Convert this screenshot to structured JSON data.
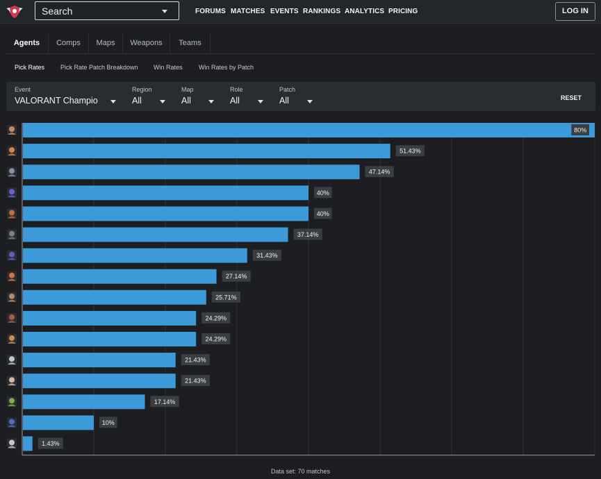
{
  "header": {
    "search_placeholder": "Search",
    "nav": [
      "FORUMS",
      "MATCHES",
      "EVENTS",
      "RANKINGS",
      "ANALYTICS",
      "PRICING"
    ],
    "login_label": "LOG IN",
    "logo_icon": "winged-shield-logo-icon"
  },
  "tabs": [
    "Agents",
    "Comps",
    "Maps",
    "Weapons",
    "Teams"
  ],
  "subtabs": [
    "Pick Rates",
    "Pick Rate Patch Breakdown",
    "Win Rates",
    "Win Rates by Patch"
  ],
  "filters": [
    {
      "label": "Event",
      "value": "VALORANT Champions"
    },
    {
      "label": "Region",
      "value": "All"
    },
    {
      "label": "Map",
      "value": "All"
    },
    {
      "label": "Role",
      "value": "All"
    },
    {
      "label": "Patch",
      "value": "All"
    }
  ],
  "reset_label": "RESET",
  "footer": "Data set: 70 matches",
  "colors": {
    "bar": "#3d9ad8",
    "label_bg": "#3a3d42",
    "accent": "#d33a4a"
  },
  "chart_data": {
    "type": "bar",
    "orientation": "horizontal",
    "xlim": [
      0,
      80
    ],
    "grid": true,
    "values": [
      80,
      51.43,
      47.14,
      40,
      40,
      37.14,
      31.43,
      27.14,
      25.71,
      24.29,
      24.29,
      21.43,
      21.43,
      17.14,
      10,
      1.43
    ],
    "labels": [
      "80%",
      "51.43%",
      "47.14%",
      "40%",
      "40%",
      "37.14%",
      "31.43%",
      "27.14%",
      "25.71%",
      "24.29%",
      "24.29%",
      "21.43%",
      "21.43%",
      "17.14%",
      "10%",
      "1.43%"
    ],
    "icon_colors": [
      "#c98a5b",
      "#d9824a",
      "#8a8fa8",
      "#6b5fd0",
      "#c86c3f",
      "#7b7f8a",
      "#5a60c8",
      "#d0743c",
      "#b98a6a",
      "#a85d4a",
      "#d08a4a",
      "#c0c4d0",
      "#d4b8a8",
      "#7fae4a",
      "#4a6ec8",
      "#c8c8c8"
    ]
  }
}
